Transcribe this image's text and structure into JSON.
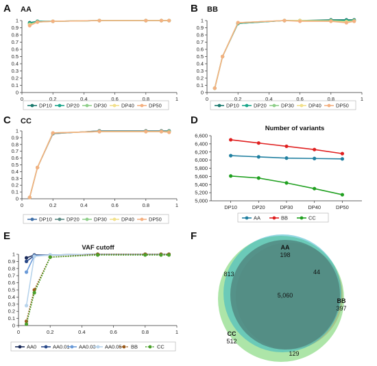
{
  "panels": {
    "A": {
      "letter": "A",
      "title": "AA"
    },
    "B": {
      "letter": "B",
      "title": "BB"
    },
    "C": {
      "letter": "C",
      "title": "CC"
    },
    "D": {
      "letter": "D",
      "title": "Number of variants"
    },
    "E": {
      "letter": "E",
      "title": "VAF cutoff"
    },
    "F": {
      "letter": "F"
    }
  },
  "chart_data": [
    {
      "panel": "A",
      "type": "line",
      "title": "AA",
      "xlim": [
        0,
        1
      ],
      "ylim": [
        0,
        1
      ],
      "xticks": [
        "0",
        "0.2",
        "0.4",
        "0.6",
        "0.8",
        "1"
      ],
      "yticks": [
        "0",
        "0.1",
        "0.2",
        "0.3",
        "0.4",
        "0.5",
        "0.6",
        "0.7",
        "0.8",
        "0.9",
        "1"
      ],
      "x": [
        0.05,
        0.1,
        0.2,
        0.5,
        0.8,
        0.9,
        0.95
      ],
      "series": [
        {
          "name": "DP10",
          "color": "#1a7a6e",
          "values": [
            0.97,
            0.99,
            0.99,
            1.0,
            1.0,
            1.0,
            1.0
          ]
        },
        {
          "name": "DP20",
          "color": "#1aa68a",
          "values": [
            0.96,
            0.99,
            0.99,
            1.0,
            1.0,
            1.0,
            1.0
          ]
        },
        {
          "name": "DP30",
          "color": "#8fcf8a",
          "values": [
            0.95,
            0.98,
            0.99,
            1.0,
            1.0,
            1.0,
            1.0
          ]
        },
        {
          "name": "DP40",
          "color": "#f2e08a",
          "values": [
            0.94,
            0.98,
            0.99,
            1.0,
            1.0,
            1.0,
            1.0
          ]
        },
        {
          "name": "DP50",
          "color": "#f4b080",
          "values": [
            0.93,
            0.98,
            0.99,
            1.0,
            1.0,
            1.0,
            1.0
          ]
        }
      ]
    },
    {
      "panel": "B",
      "type": "line",
      "title": "BB",
      "xlim": [
        0,
        1
      ],
      "ylim": [
        0,
        1
      ],
      "xticks": [
        "0",
        "0.2",
        "0.4",
        "0.6",
        "0.8",
        "1"
      ],
      "yticks": [
        "0",
        "0.1",
        "0.2",
        "0.3",
        "0.4",
        "0.5",
        "0.6",
        "0.7",
        "0.8",
        "0.9",
        "1"
      ],
      "x": [
        0.05,
        0.1,
        0.2,
        0.5,
        0.6,
        0.8,
        0.9,
        0.95
      ],
      "series": [
        {
          "name": "DP10",
          "color": "#1a7a6e",
          "values": [
            0.06,
            0.5,
            0.96,
            1.0,
            1.0,
            1.01,
            1.01,
            1.01
          ]
        },
        {
          "name": "DP20",
          "color": "#1aa68a",
          "values": [
            0.06,
            0.5,
            0.96,
            1.0,
            1.0,
            1.0,
            1.0,
            1.0
          ]
        },
        {
          "name": "DP30",
          "color": "#8fcf8a",
          "values": [
            0.06,
            0.5,
            0.97,
            1.0,
            1.0,
            1.0,
            0.99,
            1.0
          ]
        },
        {
          "name": "DP40",
          "color": "#f2e08a",
          "values": [
            0.06,
            0.5,
            0.97,
            1.0,
            1.0,
            0.99,
            0.98,
            0.99
          ]
        },
        {
          "name": "DP50",
          "color": "#f4b080",
          "values": [
            0.06,
            0.5,
            0.97,
            1.0,
            0.99,
            0.99,
            0.97,
            0.99
          ]
        }
      ]
    },
    {
      "panel": "C",
      "type": "line",
      "title": "CC",
      "xlim": [
        0,
        1
      ],
      "ylim": [
        0,
        1
      ],
      "xticks": [
        "0",
        "0.2",
        "0.4",
        "0.6",
        "0.8",
        "1"
      ],
      "yticks": [
        "0",
        "0.1",
        "0.2",
        "0.3",
        "0.4",
        "0.5",
        "0.6",
        "0.7",
        "0.8",
        "0.9",
        "1"
      ],
      "x": [
        0.05,
        0.1,
        0.2,
        0.5,
        0.8,
        0.9,
        0.95
      ],
      "series": [
        {
          "name": "DP10",
          "color": "#3f6fa8",
          "values": [
            0.02,
            0.46,
            0.96,
            1.0,
            1.0,
            1.0,
            1.0
          ]
        },
        {
          "name": "DP20",
          "color": "#5a8a84",
          "values": [
            0.02,
            0.46,
            0.96,
            1.0,
            1.0,
            1.0,
            1.0
          ]
        },
        {
          "name": "DP30",
          "color": "#8fcf8a",
          "values": [
            0.02,
            0.46,
            0.97,
            0.99,
            0.99,
            0.99,
            0.99
          ]
        },
        {
          "name": "DP40",
          "color": "#f2e08a",
          "values": [
            0.02,
            0.46,
            0.97,
            0.99,
            0.99,
            0.99,
            0.98
          ]
        },
        {
          "name": "DP50",
          "color": "#f4b080",
          "values": [
            0.02,
            0.46,
            0.97,
            0.99,
            0.99,
            0.99,
            0.98
          ]
        }
      ]
    },
    {
      "panel": "D",
      "type": "line",
      "title": "Number of variants",
      "categories": [
        "DP10",
        "DP20",
        "DP30",
        "DP40",
        "DP50"
      ],
      "ylim": [
        5000,
        6600
      ],
      "yticks": [
        "5,000",
        "5,200",
        "5,400",
        "5,600",
        "5,800",
        "6,000",
        "6,200",
        "6,400",
        "6,600"
      ],
      "series": [
        {
          "name": "AA",
          "color": "#1f7fa0",
          "values": [
            6110,
            6080,
            6050,
            6040,
            6030
          ]
        },
        {
          "name": "BB",
          "color": "#e02020",
          "values": [
            6500,
            6420,
            6340,
            6260,
            6160
          ]
        },
        {
          "name": "CC",
          "color": "#20a020",
          "values": [
            5610,
            5560,
            5440,
            5300,
            5150
          ]
        }
      ]
    },
    {
      "panel": "E",
      "type": "line",
      "title": "VAF cutoff",
      "xlim": [
        0,
        1
      ],
      "ylim": [
        0,
        1
      ],
      "xticks": [
        "0",
        "0.2",
        "0.4",
        "0.6",
        "0.8",
        "1"
      ],
      "yticks": [
        "0",
        "0.1",
        "0.2",
        "0.3",
        "0.4",
        "0.5",
        "0.6",
        "0.7",
        "0.8",
        "0.9",
        "1"
      ],
      "x": [
        0.05,
        0.1,
        0.2,
        0.5,
        0.8,
        0.9,
        0.95
      ],
      "series": [
        {
          "name": "AA0",
          "color": "#1a2a5a",
          "dashed": false,
          "values": [
            0.95,
            0.99,
            0.99,
            1.0,
            1.0,
            1.0,
            1.0
          ]
        },
        {
          "name": "AA0.01",
          "color": "#2a4a8a",
          "dashed": false,
          "values": [
            0.9,
            0.98,
            0.99,
            1.0,
            1.0,
            1.0,
            1.0
          ]
        },
        {
          "name": "AA0.03",
          "color": "#6a9ad8",
          "dashed": false,
          "values": [
            0.75,
            0.98,
            0.99,
            1.0,
            1.0,
            1.0,
            1.0
          ]
        },
        {
          "name": "AA0.05",
          "color": "#b8d4ec",
          "dashed": false,
          "values": [
            0.28,
            0.97,
            0.99,
            1.0,
            1.0,
            1.0,
            1.0
          ]
        },
        {
          "name": "BB",
          "color": "#9a5a1a",
          "dashed": true,
          "values": [
            0.06,
            0.5,
            0.96,
            1.0,
            1.0,
            1.0,
            1.0
          ]
        },
        {
          "name": "CC",
          "color": "#4aa02a",
          "dashed": true,
          "values": [
            0.02,
            0.46,
            0.96,
            0.99,
            0.99,
            0.99,
            0.99
          ]
        }
      ]
    },
    {
      "panel": "F",
      "type": "venn",
      "sets": [
        {
          "name": "AA",
          "only": "198",
          "color": "#2ab0c8"
        },
        {
          "name": "BB",
          "only": "397",
          "color": "#e07a8a"
        },
        {
          "name": "CC",
          "only": "512",
          "color": "#6ad060"
        }
      ],
      "regions": {
        "all": "5,060",
        "AA_CC": "813",
        "AA_BB": "44",
        "BB_CC": "129"
      }
    }
  ]
}
